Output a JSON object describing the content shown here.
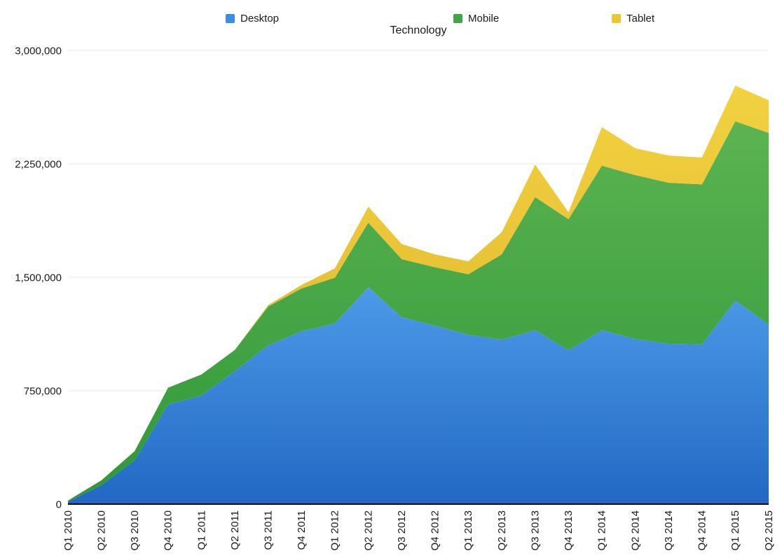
{
  "title": "Technology",
  "chart_data": {
    "type": "area",
    "stacked": true,
    "title": "Technology",
    "xlabel": "",
    "ylabel": "",
    "ylim": [
      0,
      3000000
    ],
    "grid": "horizontal",
    "legend_position": "top",
    "grid_color": "#e8e8e8",
    "axis_color": "#000000",
    "label_color": "#1a1a1a",
    "categories": [
      "Q1 2010",
      "Q2 2010",
      "Q3 2010",
      "Q4 2010",
      "Q1 2011",
      "Q2 2011",
      "Q3 2011",
      "Q4 2011",
      "Q1 2012",
      "Q2 2012",
      "Q3 2012",
      "Q4 2012",
      "Q1 2013",
      "Q2 2013",
      "Q3 2013",
      "Q4 2013",
      "Q1 2014",
      "Q2 2014",
      "Q3 2014",
      "Q4 2014",
      "Q1 2015",
      "Q2 2015"
    ],
    "y_ticks": [
      {
        "value": 0,
        "label": "0"
      },
      {
        "value": 750000,
        "label": "750,000"
      },
      {
        "value": 1500000,
        "label": "1,500,000"
      },
      {
        "value": 2250000,
        "label": "2,250,000"
      },
      {
        "value": 3000000,
        "label": "3,000,000"
      }
    ],
    "series": [
      {
        "name": "Desktop",
        "legend_color": "#3d8edd",
        "color_top": "#4d9ae8",
        "color_bottom": "#2268c4",
        "values": [
          15000,
          125000,
          290000,
          660000,
          718000,
          880000,
          1050000,
          1143000,
          1195000,
          1435000,
          1236000,
          1180000,
          1120000,
          1088000,
          1150000,
          1018000,
          1150000,
          1091000,
          1060000,
          1057000,
          1346000,
          1188000
        ]
      },
      {
        "name": "Mobile",
        "legend_color": "#43a447",
        "color_top": "#5cb351",
        "color_bottom": "#2f9838",
        "values": [
          8000,
          32000,
          60000,
          110000,
          139000,
          139000,
          256000,
          283000,
          302000,
          426000,
          384000,
          386000,
          400000,
          563000,
          880000,
          866000,
          1088000,
          1085000,
          1065000,
          1057000,
          1185000,
          1266000
        ]
      },
      {
        "name": "Tablet",
        "legend_color": "#e9c834",
        "color_top": "#f2d240",
        "color_bottom": "#dcb02a",
        "values": [
          0,
          0,
          0,
          0,
          0,
          0,
          10000,
          23000,
          62000,
          106000,
          100000,
          85000,
          85000,
          147000,
          215000,
          46000,
          255000,
          177000,
          180000,
          178000,
          236000,
          216000
        ]
      }
    ]
  }
}
